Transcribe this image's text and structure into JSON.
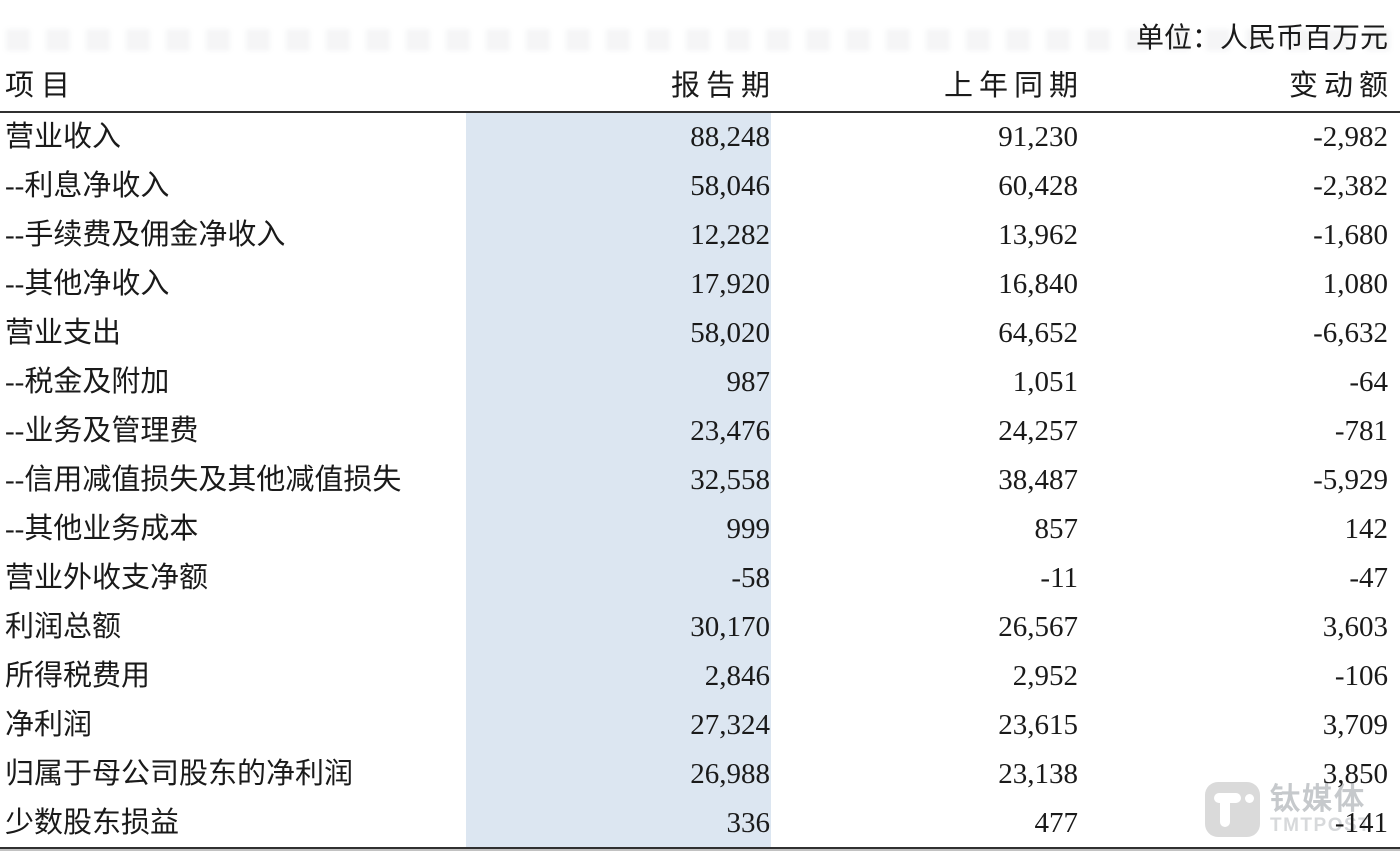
{
  "unit_label": "单位：人民币百万元",
  "table": {
    "columns": [
      "项目",
      "报告期",
      "上年同期",
      "变动额"
    ],
    "rows": [
      {
        "item": "营业收入",
        "current": "88,248",
        "prior": "91,230",
        "change": "-2,982"
      },
      {
        "item": "--利息净收入",
        "current": "58,046",
        "prior": "60,428",
        "change": "-2,382"
      },
      {
        "item": "--手续费及佣金净收入",
        "current": "12,282",
        "prior": "13,962",
        "change": "-1,680"
      },
      {
        "item": "--其他净收入",
        "current": "17,920",
        "prior": "16,840",
        "change": "1,080"
      },
      {
        "item": "营业支出",
        "current": "58,020",
        "prior": "64,652",
        "change": "-6,632"
      },
      {
        "item": "--税金及附加",
        "current": "987",
        "prior": "1,051",
        "change": "-64"
      },
      {
        "item": "--业务及管理费",
        "current": "23,476",
        "prior": "24,257",
        "change": "-781"
      },
      {
        "item": "--信用减值损失及其他减值损失",
        "current": "32,558",
        "prior": "38,487",
        "change": "-5,929"
      },
      {
        "item": "--其他业务成本",
        "current": "999",
        "prior": "857",
        "change": "142"
      },
      {
        "item": "营业外收支净额",
        "current": "-58",
        "prior": "-11",
        "change": "-47"
      },
      {
        "item": "利润总额",
        "current": "30,170",
        "prior": "26,567",
        "change": "3,603"
      },
      {
        "item": "所得税费用",
        "current": "2,846",
        "prior": "2,952",
        "change": "-106"
      },
      {
        "item": "净利润",
        "current": "27,324",
        "prior": "23,615",
        "change": "3,709"
      },
      {
        "item": "归属于母公司股东的净利润",
        "current": "26,988",
        "prior": "23,138",
        "change": "3,850"
      },
      {
        "item": "少数股东损益",
        "current": "336",
        "prior": "477",
        "change": "-141"
      }
    ]
  },
  "watermark": {
    "brand": "钛媒体",
    "brand_en": "TMTPOST",
    "icon": "tmtpost-logo"
  },
  "colors": {
    "highlight_column": "#dce6f1",
    "text": "#1a1a1a",
    "rule": "#303030",
    "watermark_gray": "#c6c9cc"
  }
}
